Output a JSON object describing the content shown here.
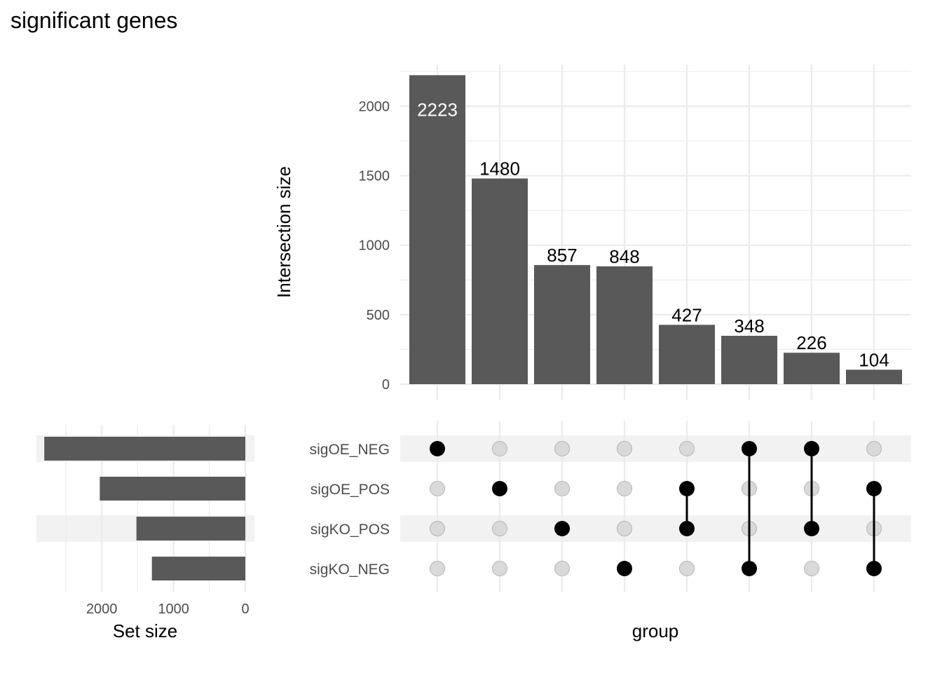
{
  "title": "significant genes",
  "chart_data": {
    "type": "bar",
    "subtype": "upset",
    "title": "significant genes",
    "intersections": {
      "ylabel": "Intersection size",
      "xlabel": "group",
      "ylim": [
        0,
        2300
      ],
      "yticks": [
        0,
        500,
        1000,
        1500,
        2000
      ],
      "values": [
        2223,
        1480,
        857,
        848,
        427,
        348,
        226,
        104
      ],
      "labels": [
        "2223",
        "1480",
        "857",
        "848",
        "427",
        "348",
        "226",
        "104"
      ],
      "membership": [
        [
          "sigOE_NEG"
        ],
        [
          "sigOE_POS"
        ],
        [
          "sigKO_POS"
        ],
        [
          "sigKO_NEG"
        ],
        [
          "sigOE_POS",
          "sigKO_POS"
        ],
        [
          "sigOE_NEG",
          "sigKO_NEG"
        ],
        [
          "sigOE_NEG",
          "sigKO_POS"
        ],
        [
          "sigOE_POS",
          "sigKO_NEG"
        ]
      ]
    },
    "sets": {
      "names": [
        "sigOE_NEG",
        "sigOE_POS",
        "sigKO_POS",
        "sigKO_NEG"
      ],
      "sizes": [
        2801,
        2028,
        1517,
        1302
      ],
      "xlabel": "Set size",
      "xlim": [
        0,
        2950
      ],
      "xticks": [
        2000,
        1000,
        0
      ],
      "reversed": true
    },
    "colors": {
      "bar": "#595959",
      "dot_active": "#000000",
      "dot_inactive": "#d9d9d9",
      "dot_inactive_stroke": "#b3b3b3",
      "grid": "#ebebeb",
      "stripe": "#f2f2f2",
      "label_inside": "#ffffff",
      "label_outside": "#000000"
    },
    "grid": true
  }
}
